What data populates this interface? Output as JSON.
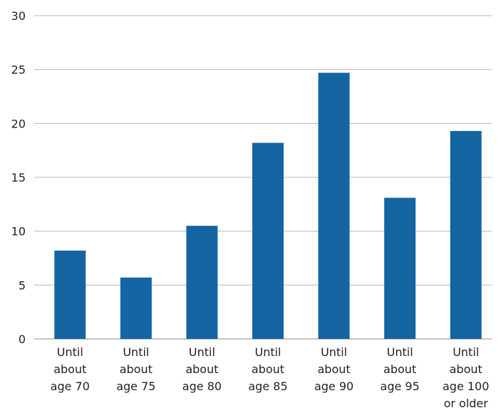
{
  "chart_data": {
    "type": "bar",
    "categories": [
      [
        "Until",
        "about",
        "age 70"
      ],
      [
        "Until",
        "about",
        "age 75"
      ],
      [
        "Until",
        "about",
        "age 80"
      ],
      [
        "Until",
        "about",
        "age 85"
      ],
      [
        "Until",
        "about",
        "age 90"
      ],
      [
        "Until",
        "about",
        "age 95"
      ],
      [
        "Until",
        "about",
        "age 100",
        "or older"
      ]
    ],
    "values": [
      8.2,
      5.7,
      10.5,
      18.2,
      24.7,
      13.1,
      19.3
    ],
    "ylim": [
      0,
      30
    ],
    "yticks": [
      "0",
      "5",
      "10",
      "15",
      "20",
      "25",
      "30"
    ],
    "bar_color": "#1565a3",
    "grid": true
  }
}
